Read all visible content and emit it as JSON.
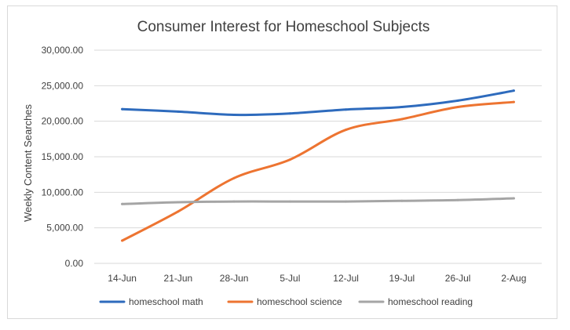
{
  "chart_data": {
    "type": "line",
    "title": "Consumer Interest for Homeschool Subjects",
    "xlabel": "",
    "ylabel": "Weekly Content Searches",
    "categories": [
      "14-Jun",
      "21-Jun",
      "28-Jun",
      "5-Jul",
      "12-Jul",
      "19-Jul",
      "26-Jul",
      "2-Aug"
    ],
    "ylim": [
      0,
      30000
    ],
    "yticks": [
      0,
      5000,
      10000,
      15000,
      20000,
      25000,
      30000
    ],
    "ytick_labels": [
      "0.00",
      "5,000.00",
      "10,000.00",
      "15,000.00",
      "20,000.00",
      "25,000.00",
      "30,000.00"
    ],
    "grid": true,
    "legend_position": "bottom",
    "series": [
      {
        "name": "homeschool math",
        "color": "#2e6bbd",
        "values": [
          21700,
          21350,
          20900,
          21100,
          21650,
          22000,
          22900,
          24300
        ]
      },
      {
        "name": "homeschool science",
        "color": "#ed7431",
        "values": [
          3200,
          7300,
          12000,
          14600,
          18800,
          20300,
          22000,
          22700
        ]
      },
      {
        "name": "homeschool reading",
        "color": "#a5a5a5",
        "values": [
          8350,
          8600,
          8700,
          8700,
          8700,
          8800,
          8900,
          9150
        ]
      }
    ]
  }
}
